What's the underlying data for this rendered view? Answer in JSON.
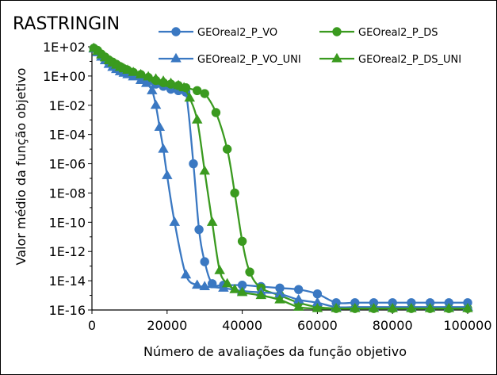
{
  "chart_data": {
    "type": "line",
    "title": "RASTRINGIN",
    "xlabel": "Número de avaliações da função objetivo",
    "ylabel": "Valor médio da função objetivo",
    "yscale": "log",
    "xlim": [
      0,
      100000
    ],
    "ylim_exp": [
      -16,
      2
    ],
    "x_ticks": [
      0,
      20000,
      40000,
      60000,
      80000,
      100000
    ],
    "x_tick_labels": [
      "0",
      "20000",
      "40000",
      "60000",
      "80000",
      "100000"
    ],
    "y_tick_labels": [
      "1E+02",
      "1E+00",
      "1E-02",
      "1E-04",
      "1E-06",
      "1E-08",
      "1E-10",
      "1E-12",
      "1E-14",
      "1E-16"
    ],
    "legend_position": "top-right",
    "series": [
      {
        "name": "GEOreal2_P_VO",
        "color": "#3a78c2",
        "marker": "circle",
        "x": [
          500,
          1500,
          2500,
          3500,
          4500,
          5500,
          6500,
          7500,
          8500,
          9500,
          11000,
          13000,
          15000,
          17000,
          19000,
          21000,
          23000,
          25000,
          27000,
          28500,
          30000,
          32000,
          35000,
          40000,
          45000,
          50000,
          55000,
          60000,
          65000,
          70000,
          75000,
          80000,
          85000,
          90000,
          95000,
          100000
        ],
        "log10_y": [
          1.9,
          1.7,
          1.4,
          1.15,
          0.9,
          0.75,
          0.55,
          0.45,
          0.35,
          0.25,
          0.1,
          -0.1,
          -0.35,
          -0.55,
          -0.7,
          -0.9,
          -1.0,
          -1.1,
          -6.0,
          -10.5,
          -12.7,
          -14.2,
          -14.3,
          -14.3,
          -14.4,
          -14.5,
          -14.6,
          -14.9,
          -15.5,
          -15.5,
          -15.5,
          -15.5,
          -15.5,
          -15.5,
          -15.5,
          -15.5
        ]
      },
      {
        "name": "GEOreal2_P_DS",
        "color": "#3a9a1f",
        "marker": "circle",
        "x": [
          500,
          1500,
          2500,
          3500,
          4500,
          5500,
          6500,
          7500,
          8500,
          9500,
          11000,
          13000,
          15000,
          17000,
          19000,
          21000,
          23000,
          25000,
          28000,
          30000,
          33000,
          36000,
          38000,
          40000,
          42000,
          45000,
          50000,
          55000,
          60000,
          65000,
          70000,
          75000,
          80000,
          85000,
          90000,
          95000,
          100000
        ],
        "log10_y": [
          1.9,
          1.75,
          1.5,
          1.3,
          1.1,
          0.95,
          0.8,
          0.65,
          0.5,
          0.4,
          0.25,
          0.1,
          -0.1,
          -0.3,
          -0.45,
          -0.55,
          -0.65,
          -0.8,
          -1.0,
          -1.2,
          -2.5,
          -5.0,
          -8.0,
          -11.3,
          -13.4,
          -14.5,
          -15.0,
          -15.5,
          -15.8,
          -15.9,
          -15.9,
          -15.9,
          -15.9,
          -15.9,
          -15.9,
          -15.9,
          -15.9
        ]
      },
      {
        "name": "GEOreal2_P_VO_UNI",
        "color": "#3a78c2",
        "marker": "triangle",
        "x": [
          500,
          1500,
          2500,
          3500,
          4500,
          5500,
          6500,
          7500,
          8500,
          9500,
          11000,
          13000,
          14500,
          16000,
          17000,
          18000,
          19000,
          20000,
          22000,
          25000,
          28000,
          30000,
          35000,
          40000,
          45000,
          50000,
          55000,
          60000,
          65000,
          70000,
          75000,
          80000,
          85000,
          90000,
          95000,
          100000
        ],
        "log10_y": [
          1.85,
          1.6,
          1.3,
          1.05,
          0.8,
          0.6,
          0.45,
          0.3,
          0.2,
          0.1,
          -0.05,
          -0.3,
          -0.5,
          -1.0,
          -2.0,
          -3.5,
          -5.0,
          -6.8,
          -10.0,
          -13.6,
          -14.3,
          -14.4,
          -14.5,
          -14.7,
          -14.8,
          -14.9,
          -15.3,
          -15.5,
          -15.8,
          -15.8,
          -15.8,
          -15.8,
          -15.8,
          -15.8,
          -15.8,
          -15.8
        ]
      },
      {
        "name": "GEOreal2_P_DS_UNI",
        "color": "#3a9a1f",
        "marker": "triangle",
        "x": [
          500,
          1500,
          2500,
          3500,
          4500,
          5500,
          6500,
          7500,
          8500,
          9500,
          11000,
          13000,
          15000,
          17000,
          19000,
          21000,
          23000,
          24500,
          26000,
          28000,
          30000,
          32000,
          34000,
          36000,
          38000,
          40000,
          45000,
          50000,
          55000,
          60000,
          65000,
          70000,
          75000,
          80000,
          85000,
          90000,
          95000,
          100000
        ],
        "log10_y": [
          1.9,
          1.7,
          1.45,
          1.25,
          1.05,
          0.9,
          0.75,
          0.6,
          0.5,
          0.4,
          0.25,
          0.1,
          -0.05,
          -0.2,
          -0.35,
          -0.5,
          -0.65,
          -0.8,
          -1.5,
          -3.0,
          -6.5,
          -10.0,
          -13.3,
          -14.2,
          -14.6,
          -14.8,
          -15.0,
          -15.3,
          -15.8,
          -15.9,
          -15.9,
          -15.9,
          -15.9,
          -15.9,
          -15.9,
          -15.9,
          -15.9,
          -15.9
        ]
      }
    ]
  }
}
